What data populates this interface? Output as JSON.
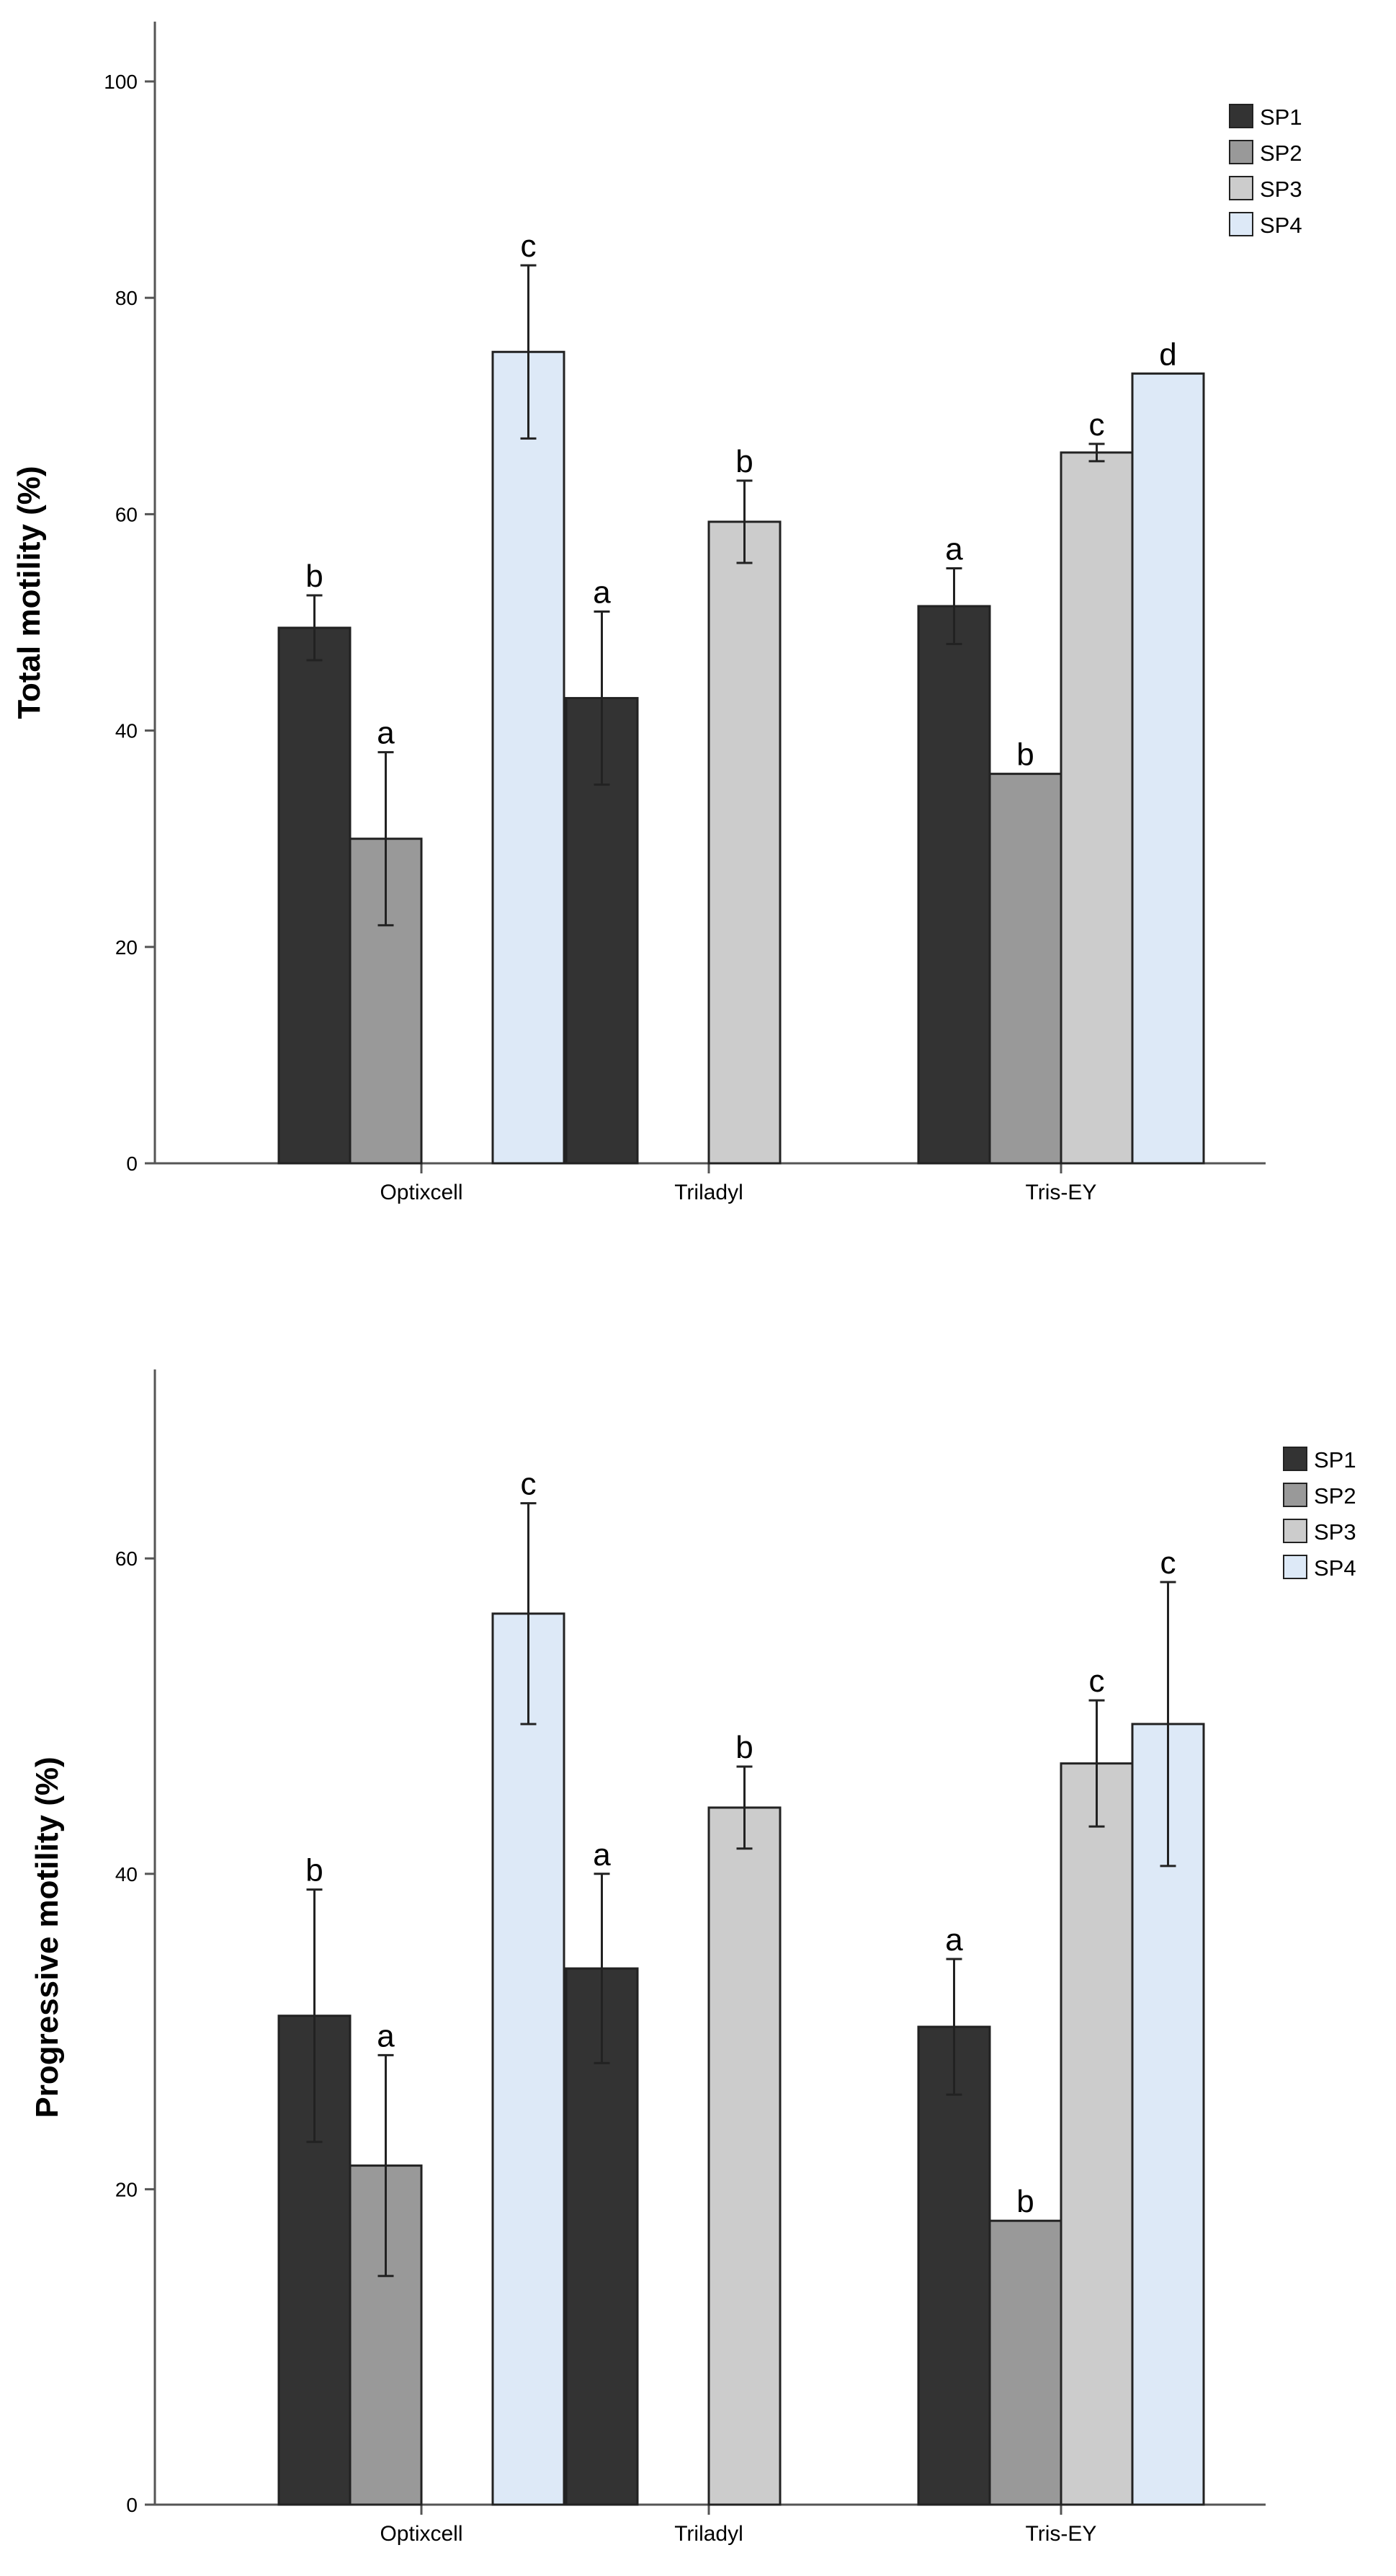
{
  "chart_data": [
    {
      "type": "bar",
      "ylabel": "Total motility (%)",
      "xlabel": "",
      "ylim": [
        0,
        105
      ],
      "yticks": [
        0,
        20,
        40,
        60,
        80,
        100
      ],
      "categories": [
        "Optixcell",
        "Triladyl",
        "Tris-EY"
      ],
      "legend_position": "top-right",
      "series": [
        {
          "name": "SP1",
          "color": "#333333",
          "values": [
            49.5,
            43.0,
            51.5
          ],
          "errors": [
            3.0,
            8.0,
            3.5
          ],
          "letters": [
            "b",
            "a",
            "a"
          ]
        },
        {
          "name": "SP2",
          "color": "#999999",
          "values": [
            30.0,
            null,
            36.0
          ],
          "errors": [
            8.0,
            null,
            0
          ],
          "letters": [
            "a",
            null,
            "b"
          ]
        },
        {
          "name": "SP3",
          "color": "#cccccc",
          "values": [
            null,
            59.3,
            65.7
          ],
          "errors": [
            null,
            3.8,
            0.8
          ],
          "letters": [
            null,
            "b",
            "c"
          ]
        },
        {
          "name": "SP4",
          "color": "#dde9f7",
          "values": [
            75.0,
            null,
            73.0
          ],
          "errors": [
            8.0,
            null,
            0
          ],
          "letters": [
            "c",
            null,
            "d"
          ]
        }
      ]
    },
    {
      "type": "bar",
      "ylabel": "Progressive motility (%)",
      "xlabel": "",
      "ylim": [
        0,
        73
      ],
      "yticks": [
        0,
        20,
        40,
        60
      ],
      "categories": [
        "Optixcell",
        "Triladyl",
        "Tris-EY"
      ],
      "legend_position": "top-right",
      "series": [
        {
          "name": "SP1",
          "color": "#333333",
          "values": [
            31.0,
            34.0,
            30.3
          ],
          "errors": [
            8.0,
            6.0,
            4.3
          ],
          "letters": [
            "b",
            "a",
            "a"
          ]
        },
        {
          "name": "SP2",
          "color": "#999999",
          "values": [
            21.5,
            null,
            18.0
          ],
          "errors": [
            7.0,
            null,
            0
          ],
          "letters": [
            "a",
            null,
            "b"
          ]
        },
        {
          "name": "SP3",
          "color": "#cccccc",
          "values": [
            null,
            44.2,
            47.0
          ],
          "errors": [
            null,
            2.6,
            4.0
          ],
          "letters": [
            null,
            "b",
            "c"
          ]
        },
        {
          "name": "SP4",
          "color": "#dde9f7",
          "values": [
            56.5,
            null,
            49.5
          ],
          "errors": [
            7.0,
            null,
            9.0
          ],
          "letters": [
            "c",
            null,
            "c"
          ]
        }
      ]
    }
  ]
}
